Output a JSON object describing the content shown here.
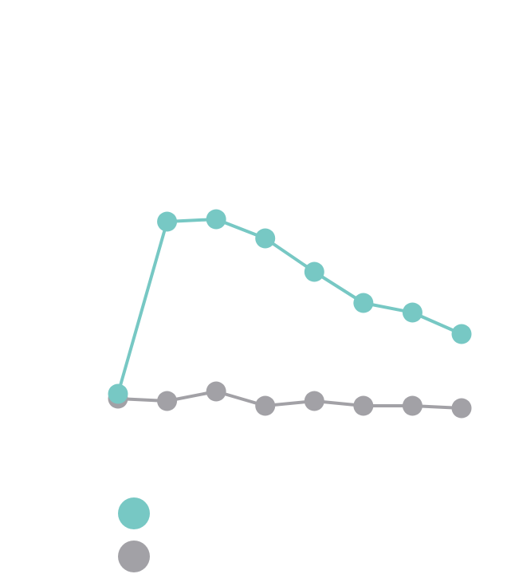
{
  "chart_data": {
    "type": "line",
    "categories": [
      null,
      null,
      null,
      null,
      null,
      null,
      null,
      null
    ],
    "series": [
      {
        "color": "#77c8c4",
        "values": [
          22,
          94,
          95,
          87,
          73,
          60,
          56,
          47
        ]
      },
      {
        "color": "#a2a1a6",
        "values": [
          20,
          19,
          23,
          17,
          19,
          17,
          17,
          16
        ]
      }
    ],
    "ylim": [
      0,
      100
    ]
  }
}
